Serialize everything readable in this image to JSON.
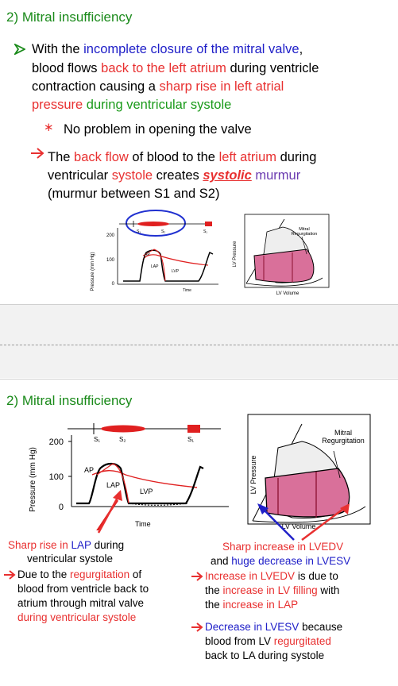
{
  "slide1": {
    "title": "2) Mitral insufficiency",
    "p1": {
      "a": "With the ",
      "b": "incomplete closure of the mitral valve",
      "c": ",",
      "d": "blood flows ",
      "e": "back to the left atrium",
      "f": " during ventricle",
      "g": "contraction causing a ",
      "h": "sharp rise in left atrial",
      "i": "pressure",
      "j": " during ventricular systole"
    },
    "p2": "No problem in opening the valve",
    "p3": {
      "a": "The ",
      "b": "back flow",
      "c": " of blood to the ",
      "d": "left atrium",
      "e": " during",
      "f": "ventricular ",
      "g": "systole",
      "h": " creates ",
      "i": "systolic",
      "j": " murmur",
      "k": "(murmur between S1 and S2)"
    }
  },
  "graph": {
    "ylabel": "Pressure (mm Hg)",
    "y200": "200",
    "y100": "100",
    "y0": "0",
    "ap": "AP",
    "lap": "LAP",
    "lvp": "LVP",
    "xlabel": "Time",
    "s1": "S₁",
    "s2": "S₂",
    "s1b": "S₁"
  },
  "loop": {
    "ylabel": "LV Pressure",
    "xlabel": "LV Volume",
    "label1": "Mitral",
    "label2": "Regurgitation"
  },
  "slide2": {
    "title": "2) Mitral insufficiency",
    "left": {
      "a1": "Sharp rise in ",
      "a2": "LAP",
      "a3": " during",
      "a4": "ventricular systole",
      "b1": "Due to the ",
      "b2": "regurgitation",
      "b3": " of",
      "b4": "blood from ventricle back to",
      "b5": "atrium through mitral valve",
      "b6": "during ventricular systole"
    },
    "right": {
      "a1": "Sharp increase in LVEDV",
      "a2": "and ",
      "a3": "huge decrease in LVESV",
      "b1": "Increase in LVEDV",
      "b2": " is due to",
      "b3": "the ",
      "b4": "increase in LV filling",
      "b5": " with",
      "b6": "the ",
      "b7": "increase in LAP",
      "c1": "Decrease in LVESV",
      "c2": " because",
      "c3": "blood from LV ",
      "c4": "regurgitated",
      "c5": "back to LA during systole"
    }
  },
  "colors": {
    "title": "#1a8a1a",
    "blue": "#2020c8",
    "red": "#e83030",
    "loop_fill": "#d9709a"
  }
}
